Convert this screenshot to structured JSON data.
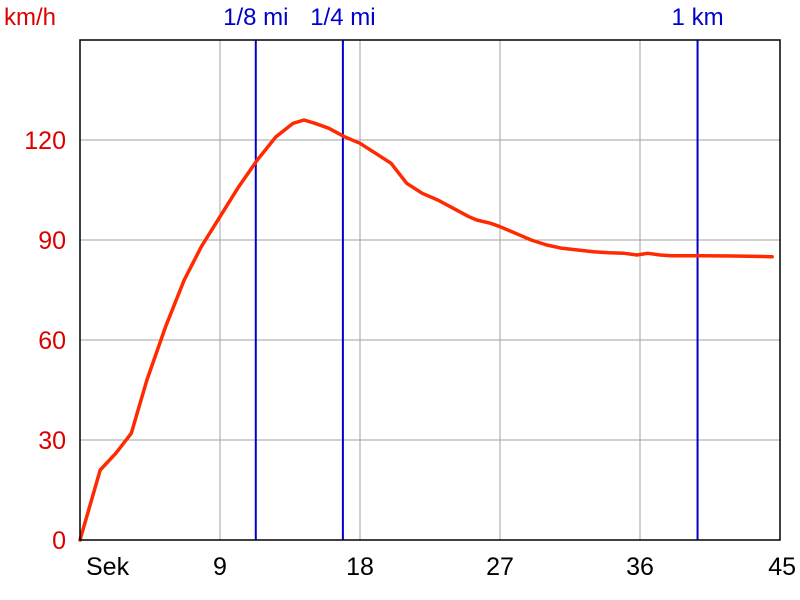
{
  "chart_data": {
    "type": "line",
    "ylabel": "km/h",
    "xlabel": "Sek",
    "x_tick_labels": [
      "Sek",
      "9",
      "18",
      "27",
      "36",
      "45"
    ],
    "y_tick_labels": [
      "0",
      "30",
      "60",
      "90",
      "120"
    ],
    "xlim": [
      0,
      45
    ],
    "ylim": [
      0,
      150
    ],
    "x_ticks": [
      9,
      18,
      27,
      36,
      45
    ],
    "y_ticks": [
      0,
      30,
      60,
      90,
      120
    ],
    "grid": true,
    "series": [
      {
        "color": "#ff2a00",
        "x": [
          0,
          1.3,
          2.3,
          3.3,
          4.3,
          5.5,
          6.7,
          7.8,
          9,
          10.2,
          11.4,
          12.6,
          13.7,
          14.4,
          15.1,
          16,
          17,
          18,
          19,
          20,
          21,
          22,
          23,
          24,
          25,
          25.5,
          26.4,
          27,
          28,
          29,
          30,
          31,
          32,
          33,
          34,
          35,
          35.8,
          36.5,
          37.3,
          38,
          40,
          42,
          44.5
        ],
        "values": [
          0,
          21,
          26,
          32,
          48,
          64,
          78,
          88,
          97,
          106,
          114,
          121,
          125,
          126,
          125,
          123.5,
          121,
          119,
          116,
          113,
          107,
          104,
          102,
          99.5,
          97,
          96,
          95,
          94,
          92,
          90,
          88.5,
          87.5,
          87,
          86.5,
          86.2,
          86,
          85.5,
          86,
          85.5,
          85.3,
          85.3,
          85.2,
          85
        ]
      }
    ],
    "markers": [
      {
        "label": "1/8 mi",
        "x": 11.3,
        "color": "#0000cc"
      },
      {
        "label": "1/4 mi",
        "x": 16.9,
        "color": "#0000cc"
      },
      {
        "label": "1 km",
        "x": 39.7,
        "color": "#0000cc"
      }
    ],
    "axis_color": "#000000",
    "grid_color": "#a0a0a0",
    "y_label_color": "#dd0000",
    "x_label_color": "#000000"
  }
}
